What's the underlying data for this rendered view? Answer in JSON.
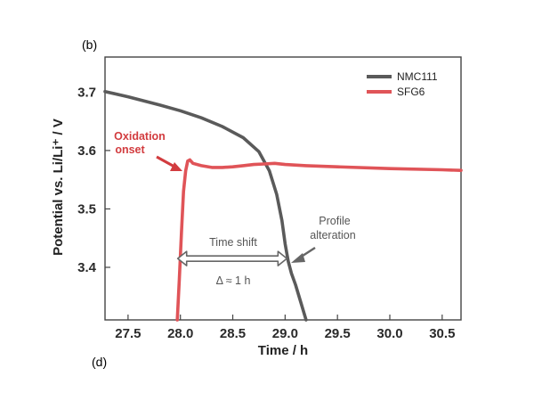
{
  "chart_data": {
    "type": "line",
    "panel_label": "(b)",
    "next_panel_label": "(d)",
    "title": "",
    "xlabel": "Time / h",
    "ylabel": "Potential vs. Li/Li⁺ / V",
    "xlim": [
      27.28,
      30.68
    ],
    "ylim": [
      3.31,
      3.76
    ],
    "xticks": [
      27.5,
      28.0,
      28.5,
      29.0,
      29.5,
      30.0,
      30.5
    ],
    "xtick_labels": [
      "27.5",
      "28.0",
      "28.5",
      "29.0",
      "29.5",
      "30.0",
      "30.5"
    ],
    "yticks": [
      3.4,
      3.5,
      3.6,
      3.7
    ],
    "ytick_labels": [
      "3.4",
      "3.5",
      "3.6",
      "3.7"
    ],
    "legend_position": "top-right",
    "series": [
      {
        "name": "NMC111",
        "color": "#5a5a5a",
        "x": [
          27.28,
          27.5,
          27.8,
          28.0,
          28.2,
          28.4,
          28.6,
          28.75,
          28.85,
          28.92,
          28.97,
          29.0,
          29.03,
          29.06,
          29.1,
          29.15,
          29.2
        ],
        "y": [
          3.701,
          3.692,
          3.678,
          3.668,
          3.656,
          3.641,
          3.622,
          3.598,
          3.565,
          3.525,
          3.48,
          3.44,
          3.41,
          3.39,
          3.37,
          3.34,
          3.31
        ]
      },
      {
        "name": "SFG6",
        "color": "#e05458",
        "x": [
          27.97,
          27.99,
          28.01,
          28.03,
          28.05,
          28.07,
          28.09,
          28.12,
          28.2,
          28.3,
          28.4,
          28.5,
          28.6,
          28.7,
          28.8,
          28.9,
          29.0,
          29.2,
          29.5,
          30.0,
          30.5,
          30.68
        ],
        "y": [
          3.31,
          3.38,
          3.46,
          3.53,
          3.565,
          3.582,
          3.584,
          3.578,
          3.574,
          3.571,
          3.571,
          3.572,
          3.574,
          3.576,
          3.577,
          3.578,
          3.576,
          3.574,
          3.572,
          3.569,
          3.567,
          3.566
        ]
      }
    ],
    "annotations": {
      "oxidation_onset": [
        "Oxidation",
        "onset"
      ],
      "time_shift": "Time shift",
      "delta": "Δ ≈ 1 h",
      "profile_alteration": [
        "Profile",
        "alteration"
      ],
      "time_shift_from_h": 28.0,
      "time_shift_to_h": 29.0,
      "time_shift_at_v": 3.415
    }
  }
}
